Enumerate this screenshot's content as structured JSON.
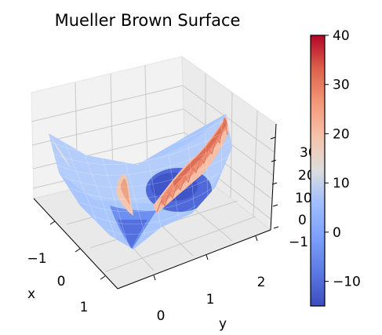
{
  "chart_data": {
    "type": "surface3d",
    "title": "Mueller Brown Surface",
    "xlabel": "x",
    "ylabel": "y",
    "zlabel": "",
    "xlim": [
      -1.5,
      1.2
    ],
    "ylim": [
      -0.5,
      2.0
    ],
    "zlim": [
      -15,
      40
    ],
    "x_ticks": [
      "−1",
      "0",
      "1"
    ],
    "y_ticks": [
      "0",
      "1",
      "2"
    ],
    "z_ticks": [
      "−1",
      "0",
      "10",
      "20",
      "30"
    ],
    "colormap": "coolwarm",
    "colorbar": {
      "vmin": -15,
      "vmax": 40,
      "ticks": [
        "−10",
        "0",
        "10",
        "20",
        "30",
        "40"
      ]
    },
    "surface_profile": {
      "description_values_z": [
        {
          "x": -1.4,
          "y": -0.3,
          "z": 12
        },
        {
          "x": -0.6,
          "y": 0.4,
          "z": 2
        },
        {
          "x": 0.0,
          "y": 0.8,
          "z": -10
        },
        {
          "x": 0.6,
          "y": 0.1,
          "z": -8
        },
        {
          "x": 0.9,
          "y": 1.8,
          "z": 30
        }
      ]
    }
  }
}
